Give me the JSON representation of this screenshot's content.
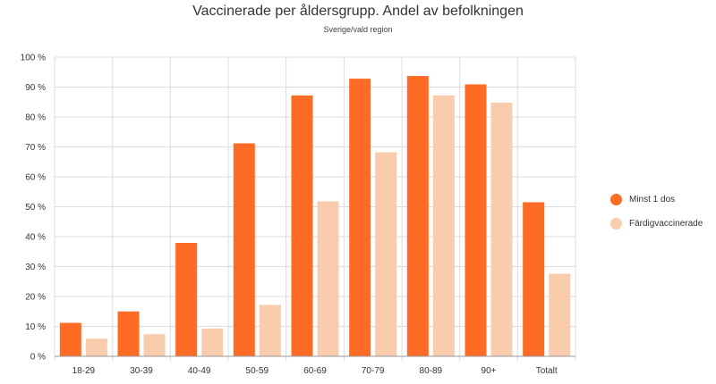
{
  "chart_data": {
    "type": "bar",
    "title": "Vaccinerade per åldersgrupp. Andel av befolkningen",
    "subtitle": "Sverige/vald region",
    "categories": [
      "18-29",
      "30-39",
      "40-49",
      "50-59",
      "60-69",
      "70-79",
      "80-89",
      "90+",
      "Totalt"
    ],
    "series": [
      {
        "name": "Minst 1 dos",
        "color": "#fe6b25",
        "values": [
          11.2,
          15.0,
          37.9,
          71.2,
          87.2,
          92.8,
          93.7,
          90.9,
          51.5
        ]
      },
      {
        "name": "Färdigvaccinerade",
        "color": "#f8ccad",
        "values": [
          5.9,
          7.4,
          9.3,
          17.2,
          51.8,
          68.2,
          87.2,
          84.8,
          27.6
        ]
      }
    ],
    "ylim": [
      0,
      100
    ],
    "yticks": [
      0,
      10,
      20,
      30,
      40,
      50,
      60,
      70,
      80,
      90,
      100
    ],
    "ytick_suffix": " %",
    "grid": true,
    "legend": "right"
  }
}
